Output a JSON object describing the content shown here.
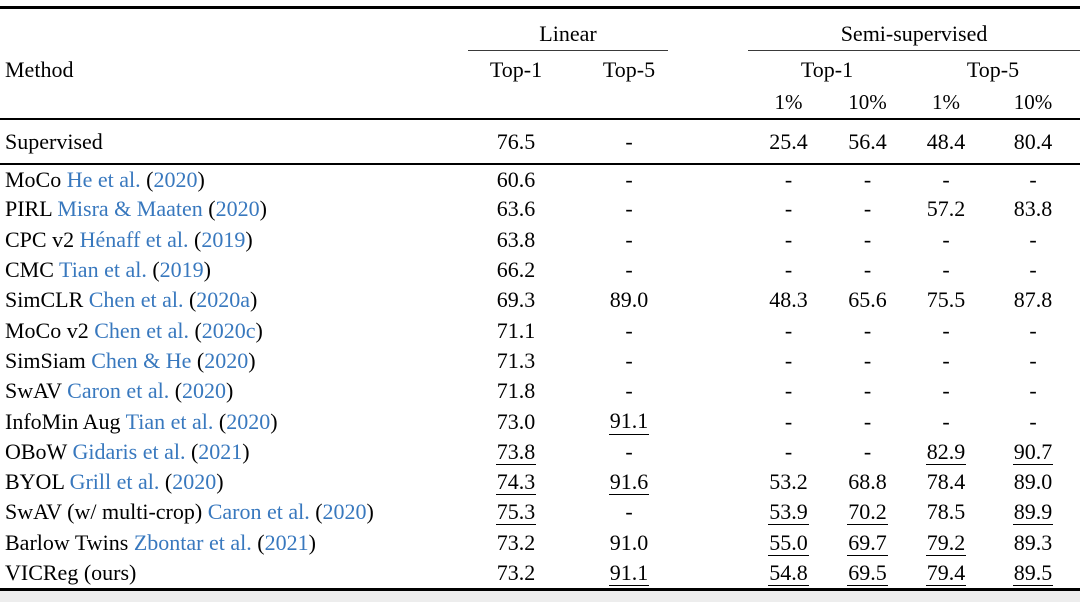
{
  "header": {
    "method": "Method",
    "linear_group": "Linear",
    "semi_group": "Semi-supervised",
    "linear_cols": [
      "Top-1",
      "Top-5"
    ],
    "semi_cols": [
      "Top-1",
      "Top-5"
    ],
    "semi_subcols": [
      "1%",
      "10%",
      "1%",
      "10%"
    ]
  },
  "colors": {
    "citation_blue": "#3878be",
    "text": "#000000",
    "rule": "#000000"
  },
  "rows": [
    {
      "method": "Supervised",
      "cite": null,
      "year": null,
      "cells": [
        {
          "v": "76.5"
        },
        {
          "v": "-"
        },
        {
          "v": "25.4"
        },
        {
          "v": "56.4"
        },
        {
          "v": "48.4"
        },
        {
          "v": "80.4"
        }
      ]
    },
    {
      "method": "MoCo",
      "cite": "He et al.",
      "year": "2020",
      "cells": [
        {
          "v": "60.6"
        },
        {
          "v": "-"
        },
        {
          "v": "-"
        },
        {
          "v": "-"
        },
        {
          "v": "-"
        },
        {
          "v": "-"
        }
      ]
    },
    {
      "method": "PIRL",
      "cite": "Misra & Maaten",
      "year": "2020",
      "cells": [
        {
          "v": "63.6"
        },
        {
          "v": "-"
        },
        {
          "v": "-"
        },
        {
          "v": "-"
        },
        {
          "v": "57.2"
        },
        {
          "v": "83.8"
        }
      ]
    },
    {
      "method": "CPC v2",
      "cite": "Hénaff et al.",
      "year": "2019",
      "cells": [
        {
          "v": "63.8"
        },
        {
          "v": "-"
        },
        {
          "v": "-"
        },
        {
          "v": "-"
        },
        {
          "v": "-"
        },
        {
          "v": "-"
        }
      ]
    },
    {
      "method": "CMC",
      "cite": "Tian et al.",
      "year": "2019",
      "cells": [
        {
          "v": "66.2"
        },
        {
          "v": "-"
        },
        {
          "v": "-"
        },
        {
          "v": "-"
        },
        {
          "v": "-"
        },
        {
          "v": "-"
        }
      ]
    },
    {
      "method": "SimCLR",
      "cite": "Chen et al.",
      "year": "2020a",
      "cells": [
        {
          "v": "69.3"
        },
        {
          "v": "89.0"
        },
        {
          "v": "48.3"
        },
        {
          "v": "65.6"
        },
        {
          "v": "75.5"
        },
        {
          "v": "87.8"
        }
      ]
    },
    {
      "method": "MoCo v2",
      "cite": "Chen et al.",
      "year": "2020c",
      "cells": [
        {
          "v": "71.1"
        },
        {
          "v": "-"
        },
        {
          "v": "-"
        },
        {
          "v": "-"
        },
        {
          "v": "-"
        },
        {
          "v": "-"
        }
      ]
    },
    {
      "method": "SimSiam",
      "cite": "Chen & He",
      "year": "2020",
      "cells": [
        {
          "v": "71.3"
        },
        {
          "v": "-"
        },
        {
          "v": "-"
        },
        {
          "v": "-"
        },
        {
          "v": "-"
        },
        {
          "v": "-"
        }
      ]
    },
    {
      "method": "SwAV",
      "cite": "Caron et al.",
      "year": "2020",
      "cells": [
        {
          "v": "71.8"
        },
        {
          "v": "-"
        },
        {
          "v": "-"
        },
        {
          "v": "-"
        },
        {
          "v": "-"
        },
        {
          "v": "-"
        }
      ]
    },
    {
      "method": "InfoMin Aug",
      "cite": "Tian et al.",
      "year": "2020",
      "cells": [
        {
          "v": "73.0"
        },
        {
          "v": "91.1",
          "u": true
        },
        {
          "v": "-"
        },
        {
          "v": "-"
        },
        {
          "v": "-"
        },
        {
          "v": "-"
        }
      ]
    },
    {
      "method": "OBoW",
      "cite": "Gidaris et al.",
      "year": "2021",
      "cells": [
        {
          "v": "73.8",
          "u": true
        },
        {
          "v": "-"
        },
        {
          "v": "-"
        },
        {
          "v": "-"
        },
        {
          "v": "82.9",
          "u": true
        },
        {
          "v": "90.7",
          "u": true
        }
      ]
    },
    {
      "method": "BYOL",
      "cite": "Grill et al.",
      "year": "2020",
      "cells": [
        {
          "v": "74.3",
          "u": true
        },
        {
          "v": "91.6",
          "u": true
        },
        {
          "v": "53.2"
        },
        {
          "v": "68.8"
        },
        {
          "v": "78.4"
        },
        {
          "v": "89.0"
        }
      ]
    },
    {
      "method": "SwAV (w/ multi-crop)",
      "cite": "Caron et al.",
      "year": "2020",
      "cells": [
        {
          "v": "75.3",
          "u": true
        },
        {
          "v": "-"
        },
        {
          "v": "53.9",
          "u": true
        },
        {
          "v": "70.2",
          "u": true
        },
        {
          "v": "78.5"
        },
        {
          "v": "89.9",
          "u": true
        }
      ]
    },
    {
      "method": "Barlow Twins",
      "cite": "Zbontar et al.",
      "year": "2021",
      "cells": [
        {
          "v": "73.2"
        },
        {
          "v": "91.0"
        },
        {
          "v": "55.0",
          "u": true
        },
        {
          "v": "69.7",
          "u": true
        },
        {
          "v": "79.2",
          "u": true
        },
        {
          "v": "89.3"
        }
      ]
    },
    {
      "method": "VICReg (ours)",
      "cite": null,
      "year": null,
      "cells": [
        {
          "v": "73.2"
        },
        {
          "v": "91.1",
          "u": true
        },
        {
          "v": "54.8",
          "u": true
        },
        {
          "v": "69.5",
          "u": true
        },
        {
          "v": "79.4",
          "u": true
        },
        {
          "v": "89.5",
          "u": true
        }
      ]
    }
  ]
}
